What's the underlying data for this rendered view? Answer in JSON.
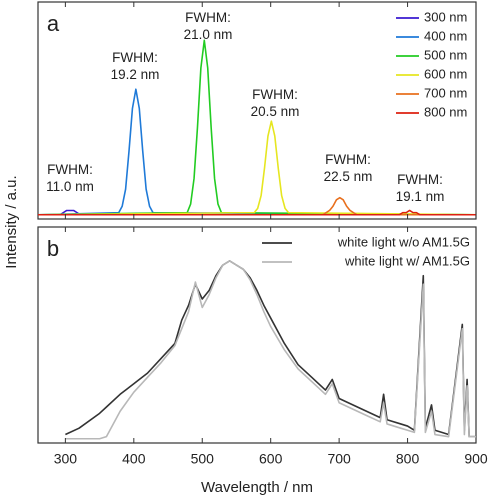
{
  "chart_data": [
    {
      "type": "line",
      "panel_label": "a",
      "y_label": "Intensity / a.u.",
      "xlim": [
        260,
        900
      ],
      "xticks": [
        300,
        400,
        500,
        600,
        700,
        800,
        900
      ],
      "ylim": [
        -0.02,
        1
      ],
      "annotations": [
        [
          "FWHM:",
          "11.0 nm"
        ],
        [
          "FWHM:",
          "19.2 nm"
        ],
        [
          "FWHM:",
          "21.0 nm"
        ],
        [
          "FWHM:",
          "20.5 nm"
        ],
        [
          "FWHM:",
          "22.5 nm"
        ],
        [
          "FWHM:",
          "19.1 nm"
        ]
      ],
      "legend": "upper right",
      "series": [
        {
          "name": "300 nm",
          "color": "#3a1ad0",
          "x": [
            260,
            292,
            297,
            302,
            307,
            312,
            317,
            322,
            900
          ],
          "values": [
            0,
            0,
            0.01,
            0.02,
            0.02,
            0.02,
            0.01,
            0,
            0
          ]
        },
        {
          "name": "400 nm",
          "color": "#1f7ad8",
          "x": [
            260,
            378,
            383,
            388,
            393,
            398,
            403,
            408,
            413,
            418,
            423,
            428,
            900
          ],
          "values": [
            0,
            0.01,
            0.04,
            0.12,
            0.3,
            0.5,
            0.59,
            0.5,
            0.3,
            0.12,
            0.04,
            0.01,
            0
          ]
        },
        {
          "name": "500 nm",
          "color": "#22cc22",
          "x": [
            260,
            478,
            483,
            488,
            493,
            498,
            503,
            508,
            513,
            518,
            523,
            528,
            900
          ],
          "values": [
            0,
            0.01,
            0.05,
            0.17,
            0.41,
            0.69,
            0.82,
            0.69,
            0.41,
            0.17,
            0.05,
            0.01,
            0
          ]
        },
        {
          "name": "600 nm",
          "color": "#e6e620",
          "x": [
            260,
            576,
            581,
            586,
            591,
            596,
            601,
            606,
            611,
            616,
            621,
            626,
            900
          ],
          "values": [
            0,
            0.01,
            0.03,
            0.09,
            0.22,
            0.37,
            0.44,
            0.37,
            0.22,
            0.09,
            0.03,
            0.01,
            0
          ]
        },
        {
          "name": "700 nm",
          "color": "#e8701e",
          "x": [
            260,
            676,
            681,
            686,
            691,
            696,
            701,
            706,
            711,
            716,
            721,
            726,
            900
          ],
          "values": [
            0,
            0,
            0.01,
            0.02,
            0.04,
            0.07,
            0.08,
            0.07,
            0.04,
            0.02,
            0.01,
            0,
            0
          ]
        },
        {
          "name": "800 nm",
          "color": "#dd2010",
          "x": [
            260,
            788,
            793,
            798,
            803,
            808,
            813,
            818,
            900
          ],
          "values": [
            0,
            0,
            0.01,
            0.01,
            0.02,
            0.01,
            0.01,
            0,
            0
          ]
        }
      ]
    },
    {
      "type": "line",
      "panel_label": "b",
      "x_label": "Wavelength / nm",
      "xlim": [
        260,
        900
      ],
      "xticks": [
        300,
        400,
        500,
        600,
        700,
        800,
        900
      ],
      "ylim": [
        -0.02,
        1
      ],
      "legend": "upper right",
      "x": [
        300,
        320,
        350,
        360,
        380,
        400,
        420,
        440,
        460,
        470,
        480,
        490,
        500,
        510,
        520,
        530,
        540,
        550,
        560,
        570,
        580,
        590,
        600,
        620,
        640,
        660,
        680,
        690,
        700,
        720,
        740,
        760,
        765,
        770,
        790,
        800,
        810,
        823,
        826,
        835,
        840,
        860,
        880,
        883,
        887,
        890,
        900
      ],
      "series": [
        {
          "name": "white light w/o AM1.5G",
          "color": "#333333",
          "values": [
            0.02,
            0.05,
            0.12,
            0.15,
            0.21,
            0.26,
            0.31,
            0.38,
            0.45,
            0.56,
            0.63,
            0.73,
            0.66,
            0.7,
            0.77,
            0.82,
            0.84,
            0.82,
            0.8,
            0.76,
            0.7,
            0.63,
            0.57,
            0.45,
            0.35,
            0.29,
            0.23,
            0.28,
            0.19,
            0.16,
            0.13,
            0.1,
            0.21,
            0.09,
            0.07,
            0.06,
            0.04,
            0.77,
            0.05,
            0.16,
            0.04,
            0.02,
            0.54,
            0.04,
            0.28,
            0.01,
            0.01
          ]
        },
        {
          "name": "white light w/ AM1.5G",
          "color": "#b8b8b8",
          "values": [
            0,
            0,
            0,
            0.01,
            0.13,
            0.22,
            0.29,
            0.36,
            0.44,
            0.52,
            0.6,
            0.74,
            0.62,
            0.68,
            0.76,
            0.82,
            0.84,
            0.82,
            0.8,
            0.75,
            0.68,
            0.6,
            0.53,
            0.42,
            0.33,
            0.27,
            0.21,
            0.26,
            0.17,
            0.14,
            0.11,
            0.08,
            0.17,
            0.07,
            0.05,
            0.04,
            0.03,
            0.73,
            0.03,
            0.13,
            0.02,
            0.01,
            0.52,
            0.02,
            0.25,
            0.01,
            0.01
          ]
        }
      ]
    }
  ]
}
